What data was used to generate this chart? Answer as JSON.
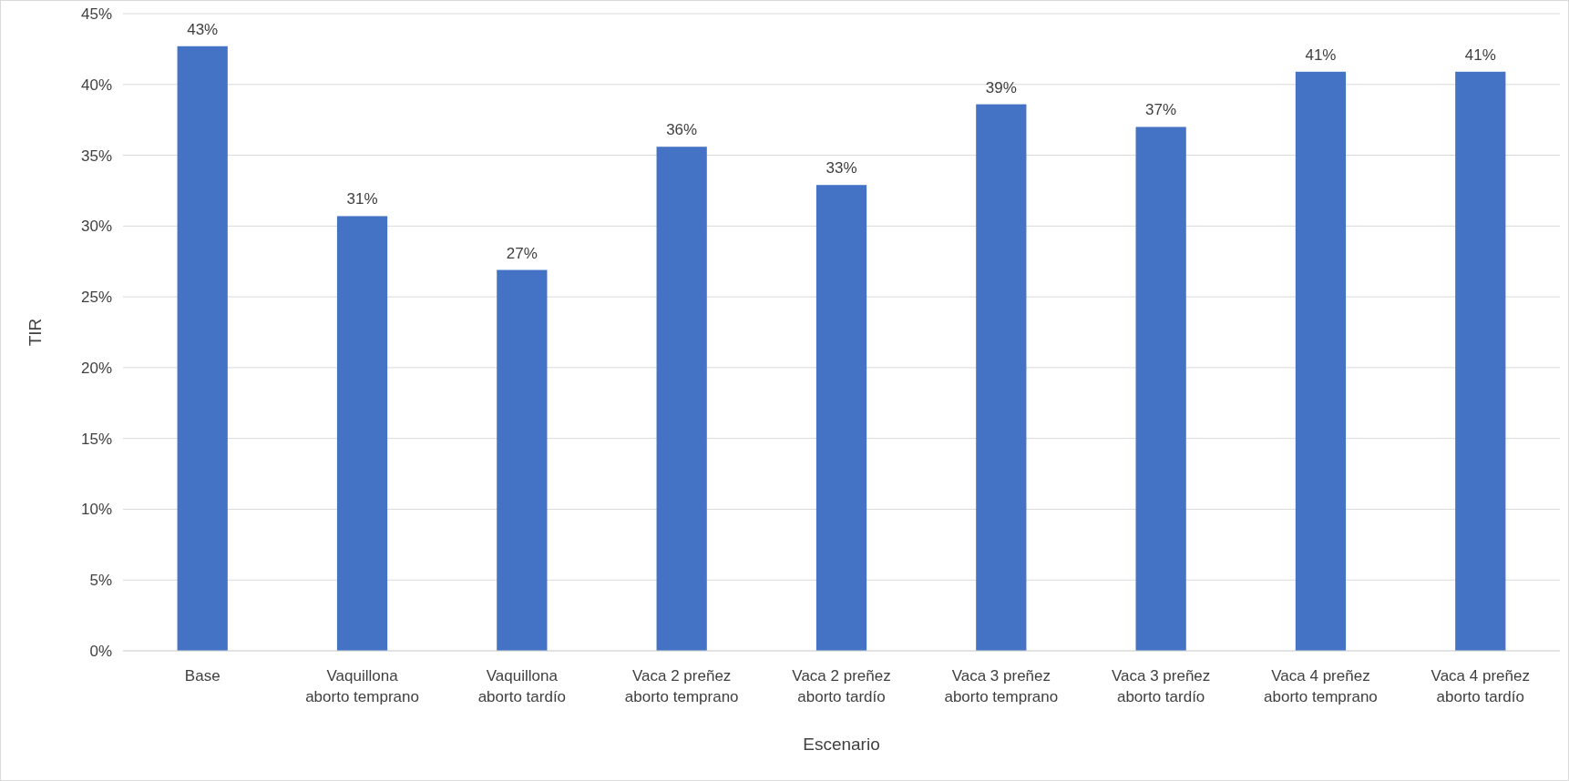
{
  "chart_data": {
    "type": "bar",
    "xlabel": "Escenario",
    "ylabel": "TIR",
    "categories": [
      "Base",
      "Vaquillona aborto temprano",
      "Vaquillona aborto tardío",
      "Vaca 2 preñez aborto temprano",
      "Vaca 2 preñez aborto tardío",
      "Vaca 3 preñez aborto temprano",
      "Vaca 3 preñez aborto tardío",
      "Vaca 4 preñez aborto temprano",
      "Vaca 4 preñez aborto tardío"
    ],
    "values": [
      42.7,
      30.7,
      26.9,
      35.6,
      32.9,
      38.6,
      37.0,
      40.9,
      40.9
    ],
    "value_labels": [
      "43%",
      "31%",
      "27%",
      "36%",
      "33%",
      "39%",
      "37%",
      "41%",
      "41%"
    ],
    "color": "#4472c4",
    "ylim": [
      0,
      45
    ],
    "yticks": [
      {
        "value": 0,
        "label": "0%"
      },
      {
        "value": 5,
        "label": "5%"
      },
      {
        "value": 10,
        "label": "10%"
      },
      {
        "value": 15,
        "label": "15%"
      },
      {
        "value": 20,
        "label": "20%"
      },
      {
        "value": 25,
        "label": "25%"
      },
      {
        "value": 30,
        "label": "30%"
      },
      {
        "value": 35,
        "label": "35%"
      },
      {
        "value": 40,
        "label": "40%"
      },
      {
        "value": 45,
        "label": "45%"
      }
    ],
    "grid": "y"
  }
}
